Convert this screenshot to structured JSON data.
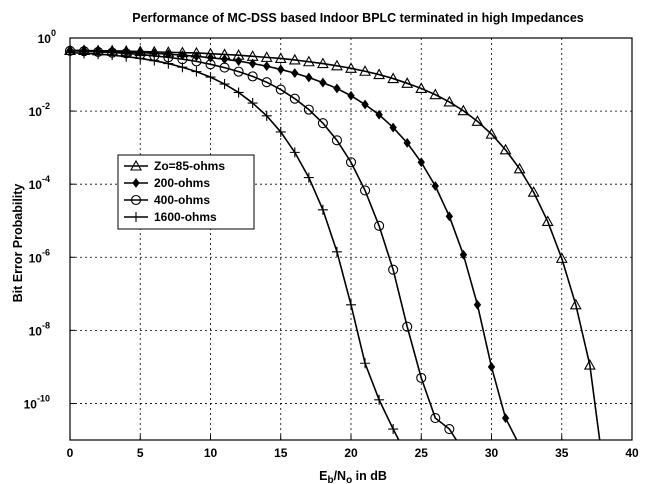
{
  "chart_data": {
    "type": "line",
    "title": "Performance of MC-DSS based Indoor BPLC terminated in high Impedances",
    "ylabel": "Bit Error Probability",
    "xlabel": {
      "main": "E",
      "sub1": "b",
      "mid": "/N",
      "sub2": "o",
      "suffix": " in dB"
    },
    "xlim": [
      0,
      40
    ],
    "ylim_log10": [
      -11,
      0
    ],
    "y_scale": "log",
    "grid": true,
    "legend_position": "center-left",
    "x_ticks": [
      0,
      5,
      10,
      15,
      20,
      25,
      30,
      35,
      40
    ],
    "y_ticks": [
      {
        "exp": 0,
        "base": "10",
        "power": "0"
      },
      {
        "exp": -2,
        "base": "10",
        "power": "-2"
      },
      {
        "exp": -4,
        "base": "10",
        "power": "-4"
      },
      {
        "exp": -6,
        "base": "10",
        "power": "-6"
      },
      {
        "exp": -8,
        "base": "10",
        "power": "-8"
      },
      {
        "exp": -10,
        "base": "10",
        "power": "-10"
      }
    ],
    "series": [
      {
        "name": "Zo=85-ohms",
        "marker": "triangle",
        "x": [
          0,
          1,
          2,
          3,
          4,
          5,
          6,
          7,
          8,
          9,
          10,
          11,
          12,
          13,
          14,
          15,
          16,
          17,
          18,
          19,
          20,
          21,
          22,
          23,
          24,
          25,
          26,
          27,
          28,
          29,
          30,
          31,
          32,
          33,
          34,
          35,
          36,
          37,
          37.7
        ],
        "log10_y": [
          -0.34,
          -0.34,
          -0.35,
          -0.35,
          -0.36,
          -0.37,
          -0.38,
          -0.39,
          -0.4,
          -0.41,
          -0.43,
          -0.45,
          -0.47,
          -0.5,
          -0.53,
          -0.56,
          -0.6,
          -0.65,
          -0.7,
          -0.76,
          -0.83,
          -0.91,
          -1.0,
          -1.11,
          -1.24,
          -1.38,
          -1.55,
          -1.75,
          -1.99,
          -2.28,
          -2.63,
          -3.06,
          -3.58,
          -4.22,
          -5.02,
          -6.03,
          -7.3,
          -8.95,
          -11.0
        ]
      },
      {
        "name": "200-ohms",
        "marker": "diamond",
        "x": [
          0,
          1,
          2,
          3,
          4,
          5,
          6,
          7,
          8,
          9,
          10,
          11,
          12,
          13,
          14,
          15,
          16,
          17,
          18,
          19,
          20,
          21,
          22,
          23,
          24,
          25,
          26,
          27,
          28,
          29,
          30,
          31,
          31.8
        ],
        "log10_y": [
          -0.34,
          -0.35,
          -0.36,
          -0.37,
          -0.38,
          -0.4,
          -0.42,
          -0.44,
          -0.47,
          -0.5,
          -0.54,
          -0.58,
          -0.63,
          -0.7,
          -0.77,
          -0.86,
          -0.96,
          -1.08,
          -1.22,
          -1.38,
          -1.58,
          -1.82,
          -2.1,
          -2.45,
          -2.87,
          -3.4,
          -4.05,
          -4.88,
          -5.93,
          -7.3,
          -9.0,
          -10.4,
          -11.0
        ]
      },
      {
        "name": "400-ohms",
        "marker": "circle",
        "x": [
          0,
          1,
          2,
          3,
          4,
          5,
          6,
          7,
          8,
          9,
          10,
          11,
          12,
          13,
          14,
          15,
          16,
          17,
          18,
          19,
          20,
          21,
          22,
          23,
          24,
          25,
          26,
          27,
          27.5
        ],
        "log10_y": [
          -0.35,
          -0.36,
          -0.38,
          -0.4,
          -0.42,
          -0.45,
          -0.49,
          -0.53,
          -0.58,
          -0.64,
          -0.72,
          -0.81,
          -0.92,
          -1.05,
          -1.21,
          -1.41,
          -1.66,
          -1.96,
          -2.33,
          -2.8,
          -3.4,
          -4.17,
          -5.14,
          -6.34,
          -7.9,
          -9.3,
          -10.4,
          -10.7,
          -11.0
        ]
      },
      {
        "name": "1600-ohms",
        "marker": "plus",
        "x": [
          0,
          1,
          2,
          3,
          4,
          5,
          6,
          7,
          8,
          9,
          10,
          11,
          12,
          13,
          14,
          15,
          16,
          17,
          18,
          19,
          20,
          21,
          22,
          23,
          23.4
        ],
        "log10_y": [
          -0.4,
          -0.42,
          -0.44,
          -0.47,
          -0.51,
          -0.56,
          -0.62,
          -0.7,
          -0.8,
          -0.92,
          -1.07,
          -1.26,
          -1.49,
          -1.78,
          -2.13,
          -2.57,
          -3.13,
          -3.82,
          -4.7,
          -5.85,
          -7.3,
          -8.9,
          -9.9,
          -10.7,
          -11.0
        ]
      }
    ]
  }
}
